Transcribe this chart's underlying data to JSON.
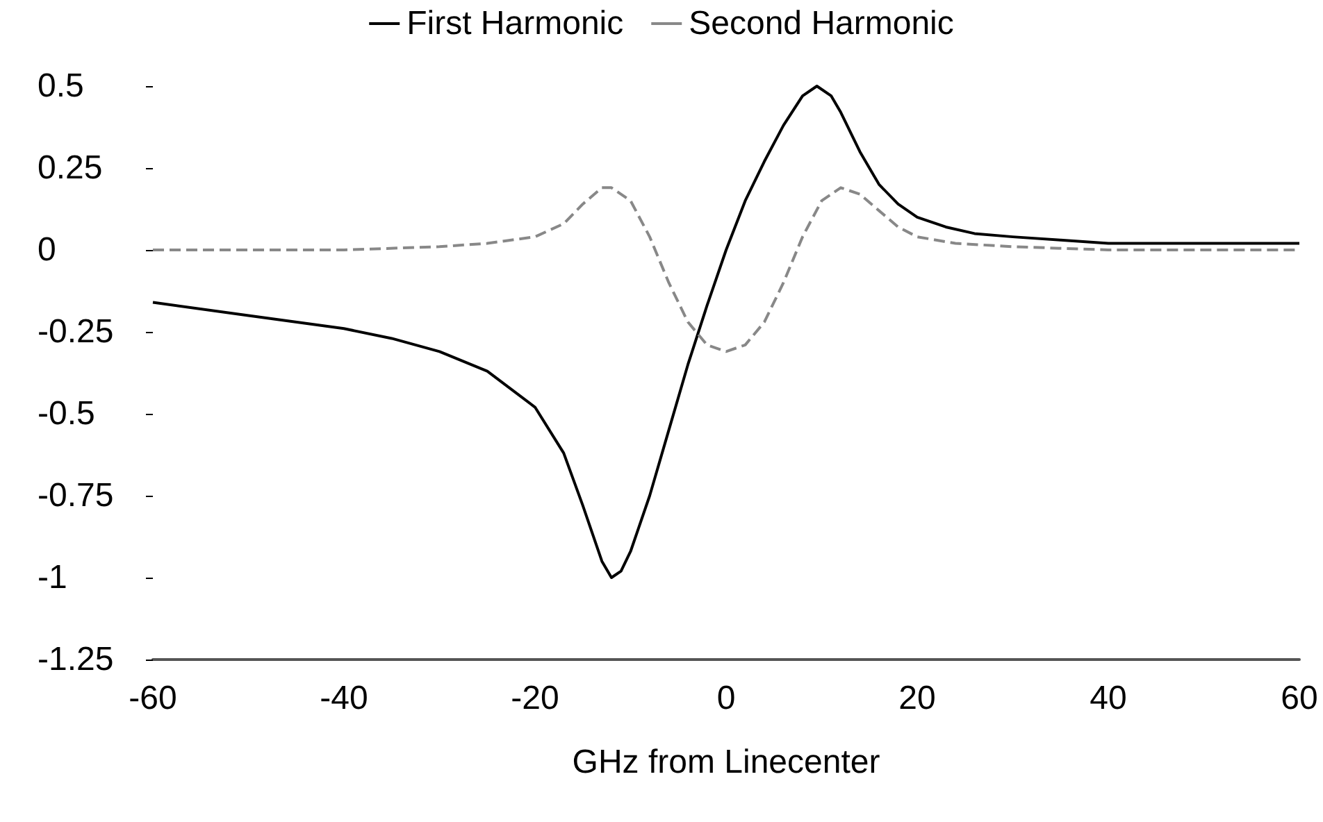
{
  "chart_data": {
    "type": "line",
    "xlabel": "GHz from Linecenter",
    "legend": "top",
    "grid": false,
    "marker": "none",
    "xlim": [
      -60,
      60
    ],
    "xticks": [
      -60,
      -40,
      -20,
      0,
      20,
      40,
      60
    ],
    "ylim": [
      -1.25,
      0.5
    ],
    "yticks": [
      -1.25,
      -1,
      -0.75,
      -0.5,
      -0.25,
      0,
      0.25,
      0.5
    ],
    "series": [
      {
        "name": "First Harmonic",
        "color": "#000000",
        "line_style": "solid",
        "x": [
          -60,
          -50,
          -40,
          -35,
          -30,
          -25,
          -20,
          -17,
          -15,
          -13,
          -12,
          -11,
          -10,
          -8,
          -6,
          -4,
          -2,
          0,
          2,
          4,
          6,
          8,
          9.5,
          11,
          12,
          14,
          16,
          18,
          20,
          23,
          26,
          30,
          35,
          40,
          50,
          60
        ],
        "values": [
          -0.16,
          -0.2,
          -0.24,
          -0.27,
          -0.31,
          -0.37,
          -0.48,
          -0.62,
          -0.78,
          -0.95,
          -1.0,
          -0.98,
          -0.92,
          -0.75,
          -0.55,
          -0.35,
          -0.17,
          0.0,
          0.15,
          0.27,
          0.38,
          0.47,
          0.5,
          0.47,
          0.42,
          0.3,
          0.2,
          0.14,
          0.1,
          0.07,
          0.05,
          0.04,
          0.03,
          0.02,
          0.02,
          0.02
        ]
      },
      {
        "name": "Second Harmonic",
        "color": "#888888",
        "line_style": "dashed",
        "x": [
          -60,
          -40,
          -30,
          -25,
          -20,
          -17,
          -15,
          -13,
          -12,
          -10,
          -8,
          -6,
          -4,
          -2,
          0,
          2,
          4,
          6,
          8,
          10,
          12,
          14,
          16,
          18,
          20,
          24,
          30,
          40,
          60
        ],
        "values": [
          0,
          0,
          0.01,
          0.02,
          0.04,
          0.08,
          0.14,
          0.19,
          0.19,
          0.15,
          0.04,
          -0.1,
          -0.22,
          -0.29,
          -0.31,
          -0.29,
          -0.22,
          -0.1,
          0.04,
          0.15,
          0.19,
          0.17,
          0.12,
          0.07,
          0.04,
          0.02,
          0.01,
          0,
          0
        ]
      }
    ]
  }
}
